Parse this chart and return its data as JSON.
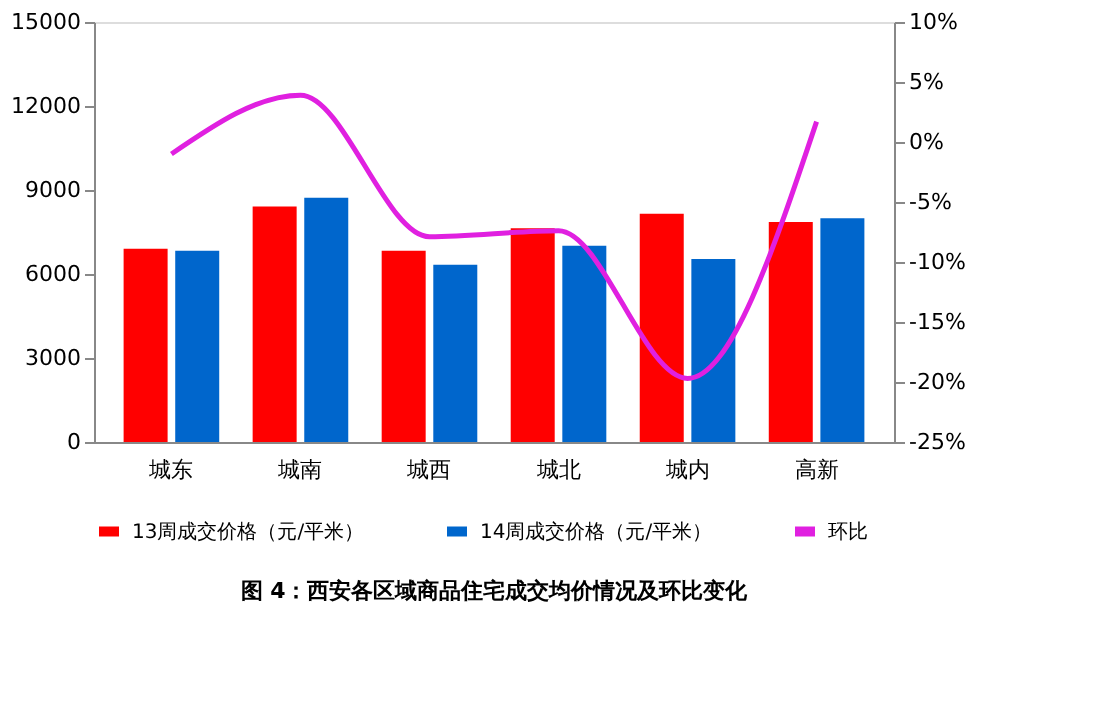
{
  "chart_data": {
    "type": "bar",
    "categories": [
      "城东",
      "城南",
      "城西",
      "城北",
      "城内",
      "高新"
    ],
    "series": [
      {
        "name": "13周成交价格（元/平米）",
        "color": "#ff0000",
        "values": [
          6900,
          8410,
          6830,
          7630,
          8150,
          7860
        ]
      },
      {
        "name": "14周成交价格（元/平米）",
        "color": "#0066cc",
        "values": [
          6830,
          8720,
          6330,
          7010,
          6540,
          7990
        ]
      },
      {
        "name": "环比",
        "type": "line",
        "axis": "y2",
        "color": "#e020e0",
        "values": [
          -1.0,
          3.9,
          -7.9,
          -7.4,
          -19.7,
          1.7
        ]
      }
    ],
    "ylim": [
      0,
      15000
    ],
    "yticks": [
      0,
      3000,
      6000,
      9000,
      12000,
      15000
    ],
    "y2lim": [
      -25,
      10
    ],
    "y2ticks": [
      {
        "value": -25,
        "label": "-25%"
      },
      {
        "value": -20,
        "label": "-20%"
      },
      {
        "value": -15,
        "label": "-15%"
      },
      {
        "value": -10,
        "label": "-10%"
      },
      {
        "value": -5,
        "label": "-5%"
      },
      {
        "value": 0,
        "label": "0%"
      },
      {
        "value": 5,
        "label": "5%"
      },
      {
        "value": 10,
        "label": "10%"
      }
    ],
    "legend": "bottom",
    "grid": false,
    "marker": "none",
    "line_style": "solid",
    "annotations": [
      "图 4：西安各区域商品住宅成交均价情况及环比变化"
    ]
  }
}
